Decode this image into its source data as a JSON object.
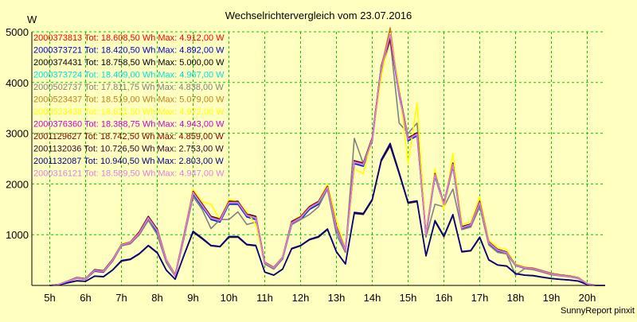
{
  "chart_data": {
    "type": "line",
    "title": "Wechselrichtervergleich vom 23.07.2016",
    "ylabel": "W",
    "xlabel": "",
    "footer": "SunnyReport pinxit",
    "ylim": [
      0,
      5000
    ],
    "yticks": [
      1000,
      2000,
      3000,
      4000,
      5000
    ],
    "xlim": [
      4.5,
      20.5
    ],
    "xticks": [
      {
        "v": 5,
        "label": "5h"
      },
      {
        "v": 6,
        "label": "6h"
      },
      {
        "v": 7,
        "label": "7h"
      },
      {
        "v": 8,
        "label": "8h"
      },
      {
        "v": 9,
        "label": "9h"
      },
      {
        "v": 10,
        "label": "10h"
      },
      {
        "v": 11,
        "label": "11h"
      },
      {
        "v": 12,
        "label": "12h"
      },
      {
        "v": 13,
        "label": "13h"
      },
      {
        "v": 14,
        "label": "14h"
      },
      {
        "v": 15,
        "label": "15h"
      },
      {
        "v": 16,
        "label": "16h"
      },
      {
        "v": 17,
        "label": "17h"
      },
      {
        "v": 18,
        "label": "18h"
      },
      {
        "v": 19,
        "label": "19h"
      },
      {
        "v": 20,
        "label": "20h"
      }
    ],
    "grid": true,
    "grid_color": "#00cc00",
    "legend_position": "top-left",
    "x": [
      5,
      5.25,
      5.5,
      5.75,
      6,
      6.25,
      6.5,
      6.75,
      7,
      7.25,
      7.5,
      7.75,
      8,
      8.25,
      8.5,
      8.75,
      9,
      9.25,
      9.5,
      9.75,
      10,
      10.25,
      10.5,
      10.75,
      11,
      11.25,
      11.5,
      11.75,
      12,
      12.25,
      12.5,
      12.75,
      13,
      13.25,
      13.5,
      13.75,
      14,
      14.25,
      14.5,
      14.75,
      15,
      15.25,
      15.5,
      15.75,
      16,
      16.25,
      16.5,
      16.75,
      17,
      17.25,
      17.5,
      17.75,
      18,
      18.25,
      18.5,
      18.75,
      19,
      19.25,
      19.5,
      19.75,
      20,
      20.25,
      20.5
    ],
    "series": [
      {
        "name": "2000373813 Tot: 18.608,50 Wh Max: 4.912,00 W",
        "color": "#ff0000",
        "values": [
          0,
          20,
          80,
          150,
          130,
          300,
          280,
          500,
          800,
          850,
          1050,
          1350,
          1100,
          500,
          200,
          1000,
          1850,
          1600,
          1350,
          1300,
          1650,
          1650,
          1400,
          1350,
          450,
          350,
          550,
          1250,
          1350,
          1550,
          1650,
          1950,
          1150,
          700,
          2450,
          2400,
          2900,
          4300,
          4900,
          3800,
          2900,
          3000,
          1000,
          2200,
          1600,
          2400,
          1150,
          1200,
          1650,
          850,
          700,
          650,
          400,
          350,
          330,
          280,
          230,
          200,
          180,
          150,
          30,
          0,
          0
        ]
      },
      {
        "name": "2000373721 Tot: 18.420,50 Wh Max: 4.892,00 W",
        "color": "#0000cc",
        "values": [
          0,
          20,
          80,
          140,
          120,
          280,
          260,
          480,
          780,
          830,
          1000,
          1300,
          1050,
          480,
          190,
          950,
          1800,
          1550,
          1300,
          1250,
          1600,
          1600,
          1350,
          1300,
          430,
          330,
          530,
          1200,
          1300,
          1500,
          1600,
          1900,
          1100,
          680,
          2400,
          2350,
          2850,
          4250,
          4890,
          3750,
          2850,
          2950,
          980,
          2150,
          1580,
          2350,
          1120,
          1180,
          1600,
          830,
          680,
          630,
          390,
          340,
          320,
          270,
          220,
          195,
          175,
          140,
          25,
          0,
          0
        ]
      },
      {
        "name": "2000374431 Tot: 18.758,50 Wh Max: 5.000,00 W",
        "color": "#000000",
        "values": [
          0,
          20,
          85,
          155,
          135,
          310,
          290,
          510,
          810,
          860,
          1060,
          1360,
          1110,
          510,
          210,
          1010,
          1860,
          1610,
          1360,
          1310,
          1660,
          1660,
          1410,
          1360,
          460,
          360,
          560,
          1260,
          1360,
          1560,
          1660,
          1960,
          1160,
          710,
          2460,
          2410,
          2910,
          4320,
          5000,
          3820,
          2910,
          3010,
          1010,
          2210,
          1610,
          2410,
          1160,
          1210,
          1660,
          860,
          710,
          660,
          410,
          360,
          340,
          290,
          240,
          210,
          190,
          155,
          35,
          0,
          0
        ]
      },
      {
        "name": "2000373724 Tot: 18.409,00 Wh Max: 4.967,00 W",
        "color": "#00e0e0",
        "values": [
          0,
          20,
          80,
          145,
          125,
          290,
          270,
          490,
          790,
          840,
          1020,
          1320,
          1070,
          490,
          195,
          960,
          1820,
          1570,
          1320,
          1270,
          1620,
          1620,
          1370,
          1320,
          440,
          340,
          540,
          1220,
          1320,
          1520,
          1620,
          1920,
          1120,
          690,
          2420,
          2370,
          2870,
          4270,
          4967,
          3770,
          2870,
          2970,
          990,
          2170,
          1590,
          2370,
          1130,
          1190,
          1620,
          840,
          690,
          640,
          395,
          345,
          325,
          275,
          225,
          198,
          178,
          145,
          28,
          0,
          0
        ]
      },
      {
        "name": "2000502737 Tot: 17.811,75 Wh Max: 4.838,00 W",
        "color": "#808080",
        "values": [
          0,
          15,
          70,
          140,
          120,
          290,
          270,
          470,
          780,
          820,
          1000,
          1280,
          1000,
          450,
          180,
          950,
          1750,
          1500,
          1120,
          1300,
          1300,
          1450,
          1200,
          1250,
          420,
          320,
          520,
          1200,
          1300,
          1400,
          1550,
          1900,
          1000,
          650,
          2900,
          2400,
          2850,
          4200,
          4838,
          3200,
          3000,
          3200,
          950,
          1600,
          1550,
          1900,
          1100,
          1150,
          1550,
          800,
          650,
          620,
          200,
          330,
          310,
          260,
          210,
          190,
          170,
          140,
          20,
          0,
          0
        ]
      },
      {
        "name": "2000523437 Tot: 18.519,00 Wh Max: 5.079,00 W",
        "color": "#c08020",
        "values": [
          0,
          20,
          80,
          150,
          130,
          300,
          280,
          500,
          800,
          850,
          1040,
          1340,
          1090,
          500,
          200,
          990,
          1840,
          1590,
          1340,
          1290,
          1640,
          1640,
          1390,
          1340,
          450,
          350,
          550,
          1240,
          1340,
          1540,
          1640,
          1940,
          1140,
          700,
          2440,
          2390,
          2890,
          4290,
          5079,
          3790,
          2890,
          2990,
          1000,
          2190,
          1600,
          2390,
          1140,
          1200,
          1640,
          850,
          700,
          650,
          400,
          350,
          330,
          280,
          230,
          200,
          180,
          150,
          30,
          0,
          0
        ]
      },
      {
        "name": "2000523438 Tot: 18.621,50 Wh Max: 4.972,00 W",
        "color": "#ffff00",
        "values": [
          0,
          20,
          85,
          150,
          130,
          300,
          280,
          500,
          820,
          860,
          1060,
          1340,
          1100,
          510,
          210,
          1000,
          1900,
          1650,
          1600,
          1300,
          1700,
          1650,
          1450,
          1200,
          460,
          360,
          560,
          1250,
          1370,
          1560,
          1660,
          2000,
          1300,
          700,
          2300,
          2200,
          2900,
          4100,
          4972,
          3900,
          2400,
          3600,
          1000,
          2300,
          1500,
          2600,
          1200,
          1250,
          1750,
          900,
          750,
          700,
          420,
          370,
          340,
          290,
          240,
          210,
          190,
          160,
          35,
          0,
          0
        ]
      },
      {
        "name": "2000376360 Tot: 18.388,75 Wh Max: 4.943,00 W",
        "color": "#cc00cc",
        "values": [
          0,
          20,
          80,
          145,
          125,
          295,
          275,
          495,
          795,
          845,
          1030,
          1330,
          1080,
          495,
          198,
          980,
          1830,
          1580,
          1330,
          1280,
          1630,
          1630,
          1380,
          1330,
          445,
          345,
          545,
          1230,
          1330,
          1530,
          1630,
          1930,
          1130,
          695,
          2430,
          2380,
          2880,
          4280,
          4943,
          3780,
          2880,
          2980,
          995,
          2180,
          1595,
          2380,
          1135,
          1195,
          1630,
          845,
          695,
          645,
          398,
          348,
          328,
          278,
          228,
          199,
          179,
          148,
          29,
          0,
          0
        ]
      },
      {
        "name": "2001129627 Tot: 18.742,50 Wh Max: 4.859,00 W",
        "color": "#800000",
        "values": [
          0,
          20,
          85,
          152,
          132,
          305,
          285,
          505,
          805,
          855,
          1055,
          1355,
          1105,
          505,
          205,
          1005,
          1855,
          1605,
          1355,
          1305,
          1655,
          1655,
          1405,
          1355,
          455,
          355,
          555,
          1255,
          1355,
          1555,
          1655,
          1955,
          1155,
          705,
          2455,
          2405,
          2905,
          4310,
          4859,
          3810,
          2905,
          3005,
          1005,
          2205,
          1605,
          2405,
          1155,
          1205,
          1655,
          855,
          705,
          655,
          405,
          355,
          335,
          285,
          235,
          205,
          185,
          152,
          32,
          0,
          0
        ]
      },
      {
        "name": "2001132036 Tot: 10.726,50 Wh Max: 2.753,00 W",
        "color": "#300030",
        "values": [
          0,
          10,
          50,
          90,
          80,
          180,
          170,
          300,
          480,
          510,
          620,
          780,
          640,
          300,
          120,
          600,
          1050,
          920,
          780,
          760,
          950,
          950,
          800,
          780,
          260,
          200,
          320,
          720,
          780,
          900,
          950,
          1100,
          660,
          420,
          1420,
          1400,
          1680,
          2450,
          2753,
          2200,
          1620,
          1650,
          580,
          1260,
          960,
          1380,
          660,
          680,
          940,
          500,
          400,
          380,
          230,
          200,
          190,
          160,
          135,
          118,
          105,
          85,
          15,
          0,
          0
        ]
      },
      {
        "name": "2001132087 Tot: 10.940,50 Wh Max: 2.803,00 W",
        "color": "#000080",
        "values": [
          0,
          10,
          52,
          92,
          82,
          185,
          175,
          305,
          490,
          520,
          630,
          790,
          650,
          305,
          122,
          610,
          1070,
          935,
          790,
          770,
          965,
          965,
          810,
          790,
          265,
          205,
          325,
          730,
          790,
          910,
          965,
          1115,
          670,
          425,
          1440,
          1420,
          1700,
          2480,
          2803,
          2230,
          1640,
          1670,
          590,
          1280,
          975,
          1400,
          670,
          690,
          955,
          510,
          405,
          385,
          235,
          205,
          195,
          165,
          138,
          120,
          108,
          88,
          16,
          0,
          0
        ]
      },
      {
        "name": "2000316121 Tot: 18.589,50 Wh Max: 4.947,00 W",
        "color": "#e080e0",
        "values": [
          0,
          20,
          80,
          148,
          128,
          298,
          278,
          498,
          798,
          848,
          1035,
          1335,
          1085,
          498,
          199,
          985,
          1835,
          1585,
          1335,
          1285,
          1635,
          1635,
          1385,
          1335,
          448,
          348,
          548,
          1235,
          1335,
          1535,
          1635,
          1935,
          1135,
          698,
          2435,
          2385,
          2885,
          4285,
          4947,
          3785,
          2885,
          2985,
          998,
          2185,
          1598,
          2385,
          1138,
          1198,
          1635,
          848,
          698,
          648,
          399,
          349,
          329,
          279,
          229,
          199,
          179,
          149,
          29,
          0,
          0
        ]
      }
    ]
  }
}
